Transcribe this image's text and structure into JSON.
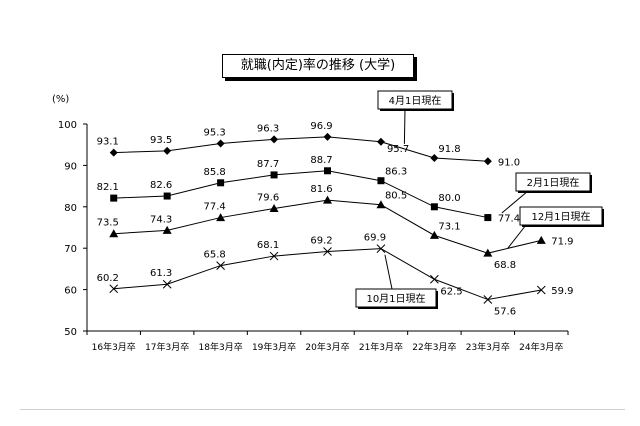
{
  "chart_data": {
    "type": "line",
    "title": "就職(内定)率の推移 (大学)",
    "ylabel": "(%)",
    "ylim": [
      50,
      100
    ],
    "yticks": [
      100,
      90,
      80,
      70,
      60,
      50
    ],
    "grid": false,
    "categories": [
      "16年3月卒",
      "17年3月卒",
      "18年3月卒",
      "19年3月卒",
      "20年3月卒",
      "21年3月卒",
      "22年3月卒",
      "23年3月卒",
      "24年3月卒"
    ],
    "series": [
      {
        "name": "4月1日現在",
        "marker": "diamond",
        "values": [
          93.1,
          93.5,
          95.3,
          96.3,
          96.9,
          95.7,
          91.8,
          91.0,
          null
        ]
      },
      {
        "name": "2月1日現在",
        "marker": "square",
        "values": [
          82.1,
          82.6,
          85.8,
          87.7,
          88.7,
          86.3,
          80.0,
          77.4,
          null
        ]
      },
      {
        "name": "12月1日現在",
        "marker": "triangle",
        "values": [
          73.5,
          74.3,
          77.4,
          79.6,
          81.6,
          80.5,
          73.1,
          68.8,
          71.9
        ]
      },
      {
        "name": "10月1日現在",
        "marker": "cross",
        "values": [
          60.2,
          61.3,
          65.8,
          68.1,
          69.2,
          69.9,
          62.5,
          57.6,
          59.9
        ]
      }
    ],
    "value_labels": [
      [
        "93.1",
        "93.5",
        "95.3",
        "96.3",
        "96.9",
        "95.7",
        "91.8",
        "91.0",
        null
      ],
      [
        "82.1",
        "82.6",
        "85.8",
        "87.7",
        "88.7",
        "86.3",
        "80.0",
        "77.4",
        null
      ],
      [
        "73.5",
        "74.3",
        "77.4",
        "79.6",
        "81.6",
        "80.5",
        "73.1",
        "68.8",
        "71.9"
      ],
      [
        "60.2",
        "61.3",
        "65.8",
        "68.1",
        "69.2",
        "69.9",
        "62.5",
        "57.6",
        "59.9"
      ]
    ],
    "colors": {
      "line": "#000000",
      "background": "#ffffff"
    }
  }
}
